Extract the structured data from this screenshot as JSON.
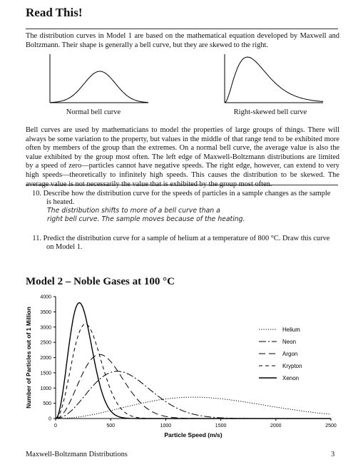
{
  "read_this": {
    "title": "Read This!",
    "para1": "The distribution curves in Model 1 are based on the mathematical equation developed by Maxwell and Boltzmann. Their shape is generally a bell curve, but they are skewed to the right.",
    "caption_normal": "Normal bell curve",
    "caption_skewed": "Right-skewed bell curve",
    "para2": "Bell curves are used by mathematicians to model the properties of large groups of things. There will always be some variation to the property, but values in the middle of that range tend to be exhibited more often by members of the group than the extremes. On a normal bell curve, the average value is also the value exhibited by the group most often. The left edge of Maxwell-Boltzmann distributions are limited by a speed of zero—particles cannot have negative speeds. The right edge, however, can extend to very high speeds—theoretically to infinitely high speeds. This causes the distribution to be skewed. The average value is not necessarily the value that is exhibited by the group most often."
  },
  "questions": {
    "q10_num": "10.",
    "q10_text": "Describe how the distribution curve for the speeds of particles in a sample changes as the sample",
    "q10_text2": "is heated.",
    "q10_answer1": "The distribution shifts to more of a bell curve than a",
    "q10_answer2": "right bell curve. The sample moves because of the heating.",
    "q11_num": "11.",
    "q11_text": "Predict the distribution curve for a sample of helium at a temperature of 800 °C. Draw this curve",
    "q11_text2": "on Model 1."
  },
  "model2": {
    "title": "Model 2 – Noble Gases at 100 °C"
  },
  "footer": {
    "left": "Maxwell-Boltzmann Distributions",
    "page": "3"
  },
  "chart_data": {
    "type": "line",
    "xlabel": "Particle Speed (m/s)",
    "ylabel": "Number of Particles out of 1 Million",
    "xlim": [
      0,
      2500
    ],
    "ylim": [
      0,
      4000
    ],
    "xticks": [
      "0",
      "500",
      "1000",
      "1500",
      "2000",
      "2500"
    ],
    "yticks": [
      "0",
      "500",
      "1000",
      "1500",
      "2000",
      "2500",
      "3000",
      "3500",
      "4000"
    ],
    "legend_position": "right",
    "series": [
      {
        "name": "Helium",
        "dash": "1.2 2",
        "peak_x": 1250,
        "peak_y": 700
      },
      {
        "name": "Neon",
        "dash": "10 3 2 3",
        "peak_x": 560,
        "peak_y": 1550
      },
      {
        "name": "Argon",
        "dash": "9 5",
        "peak_x": 400,
        "peak_y": 2100
      },
      {
        "name": "Krypton",
        "dash": "5 4",
        "peak_x": 270,
        "peak_y": 3100
      },
      {
        "name": "Xenon",
        "dash": "",
        "peak_x": 215,
        "peak_y": 3800
      }
    ]
  }
}
